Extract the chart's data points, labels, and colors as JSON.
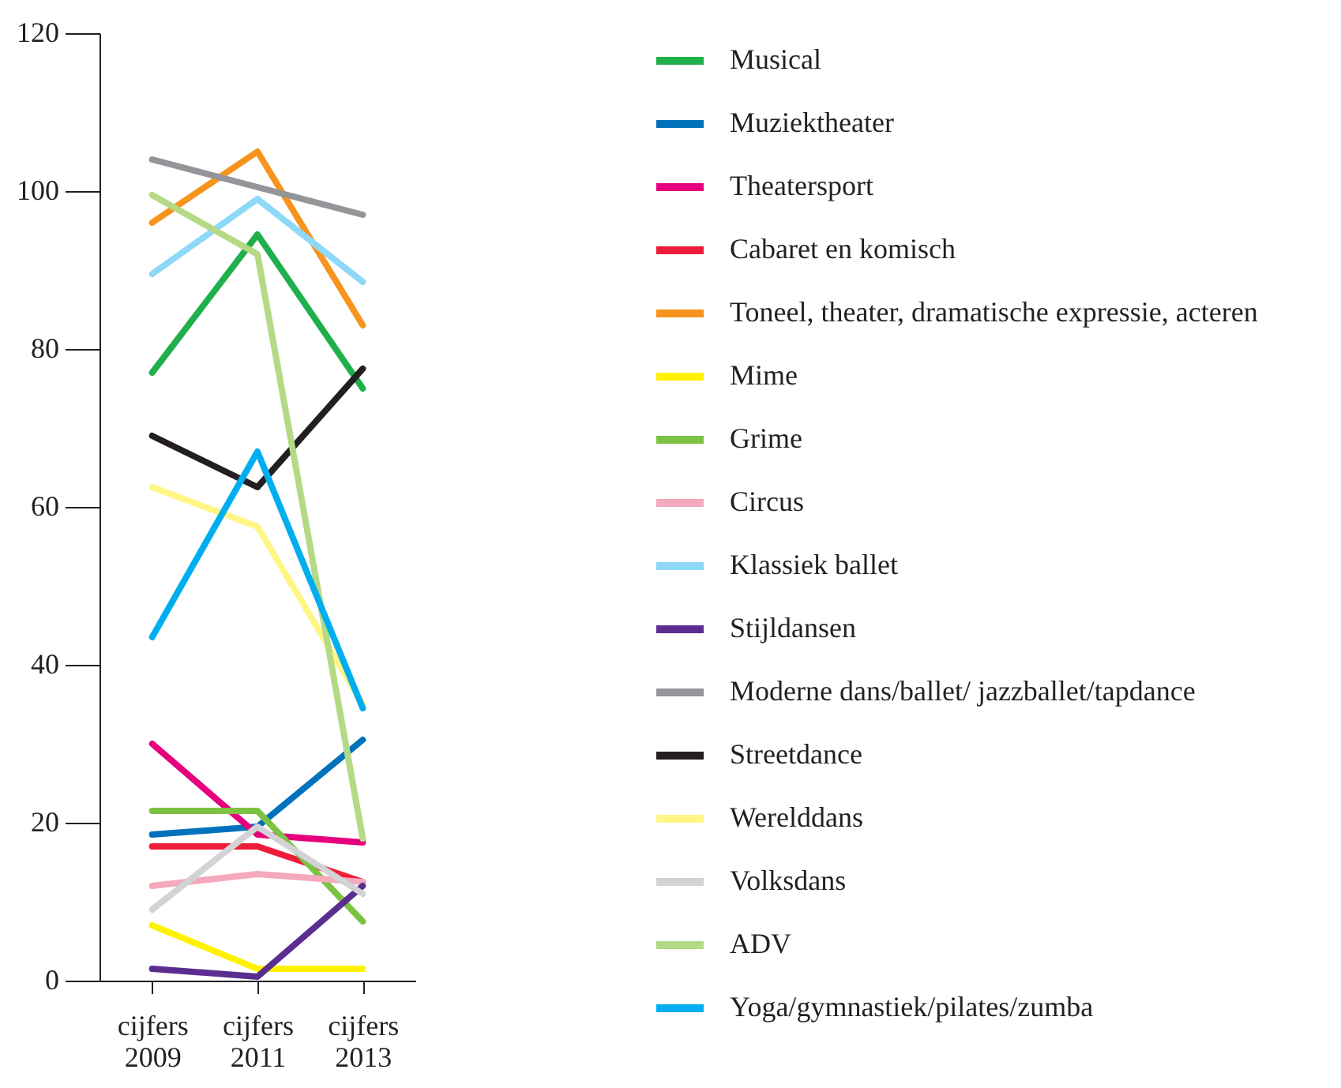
{
  "chart_data": {
    "type": "line",
    "categories": [
      "cijfers 2009",
      "cijfers 2011",
      "cijfers 2013"
    ],
    "ylim": [
      0,
      120
    ],
    "yticks": [
      0,
      20,
      40,
      60,
      80,
      100,
      120
    ],
    "grid": false,
    "legend": "right",
    "series": [
      {
        "name": "Musical",
        "color": "#1fb04b",
        "values": [
          77,
          94.5,
          75
        ]
      },
      {
        "name": "Muziektheater",
        "color": "#0072bc",
        "values": [
          18.5,
          19.5,
          30.5
        ]
      },
      {
        "name": "Theatersport",
        "color": "#e6007e",
        "values": [
          30,
          18.5,
          17.5
        ]
      },
      {
        "name": "Cabaret en komisch",
        "color": "#ed1c3a",
        "values": [
          17,
          17,
          12.5
        ]
      },
      {
        "name": "Toneel, theater, dramatische expressie, acteren",
        "color": "#f7941d",
        "values": [
          96,
          105,
          83
        ]
      },
      {
        "name": "Mime",
        "color": "#fff200",
        "values": [
          7,
          1.5,
          1.5
        ]
      },
      {
        "name": "Grime",
        "color": "#7dc242",
        "values": [
          21.5,
          21.5,
          7.5
        ]
      },
      {
        "name": "Circus",
        "color": "#f5a9bc",
        "values": [
          12,
          13.5,
          12.5
        ]
      },
      {
        "name": "Klassiek ballet",
        "color": "#8ed8f8",
        "values": [
          89.5,
          99,
          88.5
        ]
      },
      {
        "name": "Stijldansen",
        "color": "#5b2d90",
        "values": [
          1.5,
          0.5,
          12
        ]
      },
      {
        "name": "Moderne dans/ballet/ jazzballet/tapdance",
        "color": "#939598",
        "values": [
          104,
          100.5,
          97
        ]
      },
      {
        "name": "Streetdance",
        "color": "#231f20",
        "values": [
          69,
          62.5,
          77.5
        ]
      },
      {
        "name": "Werelddans",
        "color": "#fff685",
        "values": [
          62.5,
          57.5,
          35
        ]
      },
      {
        "name": "Volksdans",
        "color": "#d1d3d4",
        "values": [
          9,
          19.5,
          11
        ]
      },
      {
        "name": "ADV",
        "color": "#b5d985",
        "values": [
          99.5,
          92,
          18
        ]
      },
      {
        "name": "Yoga/gymnastiek/pilates/zumba",
        "color": "#00aeef",
        "values": [
          43.5,
          67,
          34.5
        ]
      }
    ]
  }
}
